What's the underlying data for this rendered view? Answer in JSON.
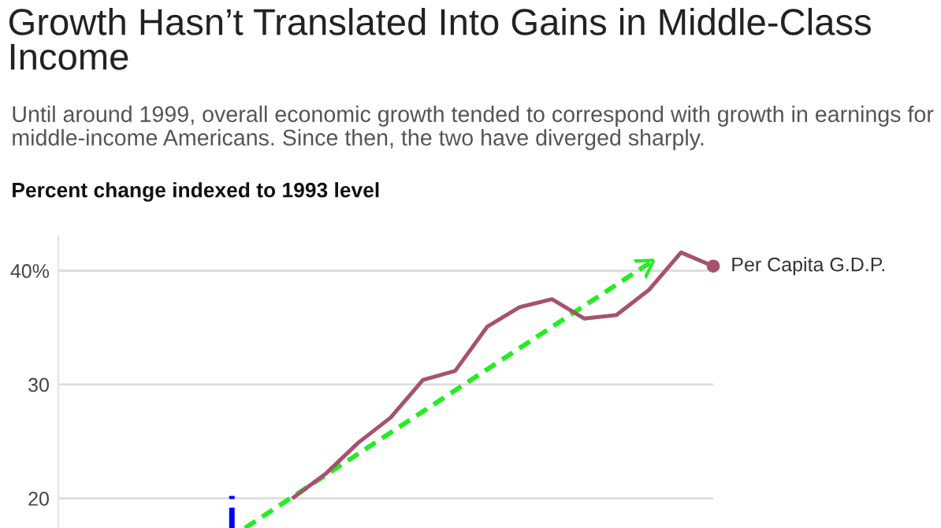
{
  "chart_data": {
    "type": "line",
    "title": "Growth Hasn’t Translated Into Gains in Middle-Class Income",
    "subtitle": "Until around 1999, overall economic growth tended to correspond with growth in earnings for middle-income Americans. Since then, the two have diverged sharply.",
    "ylabel": "Percent change indexed to 1993 level",
    "categories": [
      null,
      null,
      null,
      null,
      null,
      null,
      null,
      null,
      null,
      null,
      null,
      null,
      null,
      null,
      null,
      null,
      null,
      null,
      null,
      null,
      null
    ],
    "series": [
      {
        "name": "Per Capita G.D.P.",
        "color": "#a6526e",
        "values": [
          null,
          null,
          null,
          null,
          null,
          null,
          null,
          20.1,
          22.2,
          24.9,
          27.1,
          30.4,
          31.2,
          35.1,
          36.8,
          37.5,
          35.8,
          36.1,
          38.3,
          41.6,
          40.4
        ]
      }
    ],
    "ylim": [
      17.4,
      43
    ],
    "yticks": [
      20,
      30,
      {
        "value": 40,
        "label": "40%"
      }
    ],
    "grid": "y",
    "legend": false,
    "line_style": "solid"
  }
}
